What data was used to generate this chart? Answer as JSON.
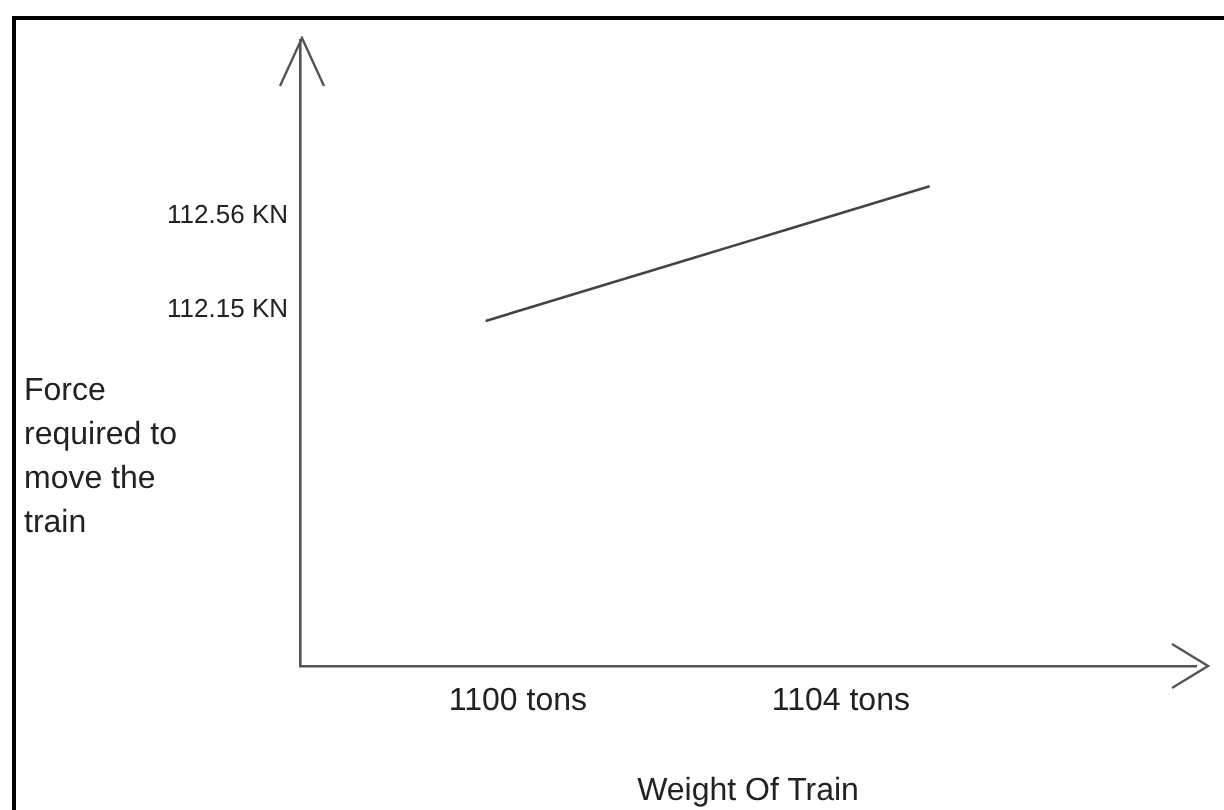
{
  "chart_data": {
    "type": "line",
    "xlabel": "Weight Of Train",
    "ylabel": "Force required to move the train",
    "series": [
      {
        "color": "#444444",
        "x": [
          1099.6,
          1105.1
        ],
        "values": [
          112.1,
          112.69
        ]
      }
    ],
    "xlim": [
      1097.3,
      1108.4
    ],
    "ylim": [
      110.59,
      113.33
    ],
    "xticks": [
      {
        "value": 1100,
        "label": "1100 tons"
      },
      {
        "value": 1104,
        "label": "1104 tons"
      }
    ],
    "yticks": [
      {
        "value": 112.15,
        "label": "112.15 KN"
      },
      {
        "value": 112.56,
        "label": "112.56 KN"
      }
    ],
    "grid": false,
    "legend": false,
    "marker": "none",
    "line_style": "solid"
  }
}
